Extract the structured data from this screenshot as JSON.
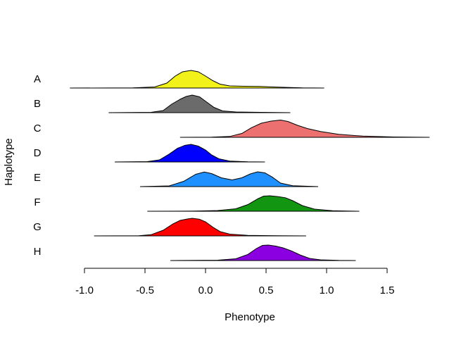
{
  "chart_data": {
    "type": "ridgeline",
    "xlabel": "Phenotype",
    "ylabel": "Haplotype",
    "xlim": [
      -1.0,
      1.5
    ],
    "xticks": [
      {
        "value": -1.0,
        "label": "-1.0"
      },
      {
        "value": -0.5,
        "label": "-0.5"
      },
      {
        "value": 0.0,
        "label": "0.0"
      },
      {
        "value": 0.5,
        "label": "0.5"
      },
      {
        "value": 1.0,
        "label": "1.0"
      },
      {
        "value": 1.5,
        "label": "1.5"
      }
    ],
    "series": [
      {
        "name": "A",
        "color": "#f2f21a",
        "range": [
          -1.12,
          0.98
        ],
        "density": [
          [
            -1.12,
            0
          ],
          [
            -0.6,
            0.01
          ],
          [
            -0.42,
            0.06
          ],
          [
            -0.32,
            0.28
          ],
          [
            -0.25,
            0.68
          ],
          [
            -0.19,
            0.92
          ],
          [
            -0.12,
            1.0
          ],
          [
            -0.06,
            0.92
          ],
          [
            0.0,
            0.68
          ],
          [
            0.06,
            0.42
          ],
          [
            0.12,
            0.22
          ],
          [
            0.2,
            0.12
          ],
          [
            0.32,
            0.1
          ],
          [
            0.45,
            0.09
          ],
          [
            0.6,
            0.05
          ],
          [
            0.8,
            0.01
          ],
          [
            0.98,
            0
          ]
        ]
      },
      {
        "name": "B",
        "color": "#6b6b6b",
        "range": [
          -0.8,
          0.7
        ],
        "density": [
          [
            -0.8,
            0
          ],
          [
            -0.45,
            0.02
          ],
          [
            -0.35,
            0.12
          ],
          [
            -0.28,
            0.48
          ],
          [
            -0.21,
            0.76
          ],
          [
            -0.16,
            0.92
          ],
          [
            -0.11,
            1.0
          ],
          [
            -0.05,
            0.9
          ],
          [
            0.01,
            0.6
          ],
          [
            0.07,
            0.3
          ],
          [
            0.14,
            0.1
          ],
          [
            0.25,
            0.04
          ],
          [
            0.45,
            0.02
          ],
          [
            0.7,
            0
          ]
        ]
      },
      {
        "name": "C",
        "color": "#ed7070",
        "range": [
          -0.21,
          1.85
        ],
        "density": [
          [
            -0.21,
            0
          ],
          [
            0.05,
            0.01
          ],
          [
            0.2,
            0.05
          ],
          [
            0.3,
            0.22
          ],
          [
            0.38,
            0.55
          ],
          [
            0.46,
            0.8
          ],
          [
            0.54,
            0.92
          ],
          [
            0.62,
            0.98
          ],
          [
            0.68,
            0.9
          ],
          [
            0.76,
            0.68
          ],
          [
            0.84,
            0.5
          ],
          [
            0.95,
            0.33
          ],
          [
            1.1,
            0.17
          ],
          [
            1.3,
            0.07
          ],
          [
            1.55,
            0.02
          ],
          [
            1.85,
            0
          ]
        ]
      },
      {
        "name": "D",
        "color": "#0000ff",
        "range": [
          -0.75,
          0.49
        ],
        "density": [
          [
            -0.75,
            0
          ],
          [
            -0.48,
            0.02
          ],
          [
            -0.38,
            0.12
          ],
          [
            -0.3,
            0.45
          ],
          [
            -0.23,
            0.78
          ],
          [
            -0.17,
            0.95
          ],
          [
            -0.12,
            1.0
          ],
          [
            -0.06,
            0.9
          ],
          [
            0.0,
            0.68
          ],
          [
            0.05,
            0.4
          ],
          [
            0.11,
            0.18
          ],
          [
            0.2,
            0.05
          ],
          [
            0.35,
            0.01
          ],
          [
            0.49,
            0
          ]
        ]
      },
      {
        "name": "E",
        "color": "#1f90ff",
        "range": [
          -0.54,
          0.93
        ],
        "density": [
          [
            -0.54,
            0
          ],
          [
            -0.3,
            0.04
          ],
          [
            -0.18,
            0.3
          ],
          [
            -0.08,
            0.7
          ],
          [
            -0.01,
            0.83
          ],
          [
            0.05,
            0.74
          ],
          [
            0.13,
            0.5
          ],
          [
            0.22,
            0.38
          ],
          [
            0.3,
            0.5
          ],
          [
            0.37,
            0.72
          ],
          [
            0.43,
            0.84
          ],
          [
            0.49,
            0.78
          ],
          [
            0.55,
            0.55
          ],
          [
            0.62,
            0.2
          ],
          [
            0.72,
            0.05
          ],
          [
            0.93,
            0
          ]
        ]
      },
      {
        "name": "F",
        "color": "#129612",
        "range": [
          -0.48,
          1.27
        ],
        "density": [
          [
            -0.48,
            0
          ],
          [
            -0.1,
            0.01
          ],
          [
            0.1,
            0.04
          ],
          [
            0.25,
            0.14
          ],
          [
            0.35,
            0.38
          ],
          [
            0.43,
            0.7
          ],
          [
            0.48,
            0.86
          ],
          [
            0.53,
            0.88
          ],
          [
            0.6,
            0.83
          ],
          [
            0.66,
            0.77
          ],
          [
            0.72,
            0.6
          ],
          [
            0.8,
            0.32
          ],
          [
            0.9,
            0.12
          ],
          [
            1.05,
            0.03
          ],
          [
            1.27,
            0
          ]
        ]
      },
      {
        "name": "G",
        "color": "#ff0000",
        "range": [
          -0.92,
          0.83
        ],
        "density": [
          [
            -0.92,
            0
          ],
          [
            -0.55,
            0.01
          ],
          [
            -0.45,
            0.07
          ],
          [
            -0.35,
            0.32
          ],
          [
            -0.27,
            0.68
          ],
          [
            -0.21,
            0.88
          ],
          [
            -0.15,
            0.96
          ],
          [
            -0.11,
            1.0
          ],
          [
            -0.05,
            0.95
          ],
          [
            0.0,
            0.8
          ],
          [
            0.06,
            0.5
          ],
          [
            0.12,
            0.25
          ],
          [
            0.2,
            0.1
          ],
          [
            0.35,
            0.03
          ],
          [
            0.6,
            0.01
          ],
          [
            0.83,
            0
          ]
        ]
      },
      {
        "name": "H",
        "color": "#8a00e0",
        "range": [
          -0.29,
          1.24
        ],
        "density": [
          [
            -0.29,
            0
          ],
          [
            0.1,
            0.02
          ],
          [
            0.25,
            0.1
          ],
          [
            0.35,
            0.35
          ],
          [
            0.42,
            0.68
          ],
          [
            0.47,
            0.86
          ],
          [
            0.52,
            0.88
          ],
          [
            0.58,
            0.82
          ],
          [
            0.64,
            0.72
          ],
          [
            0.71,
            0.55
          ],
          [
            0.78,
            0.32
          ],
          [
            0.86,
            0.12
          ],
          [
            0.95,
            0.04
          ],
          [
            1.1,
            0.01
          ],
          [
            1.24,
            0
          ]
        ]
      }
    ]
  }
}
